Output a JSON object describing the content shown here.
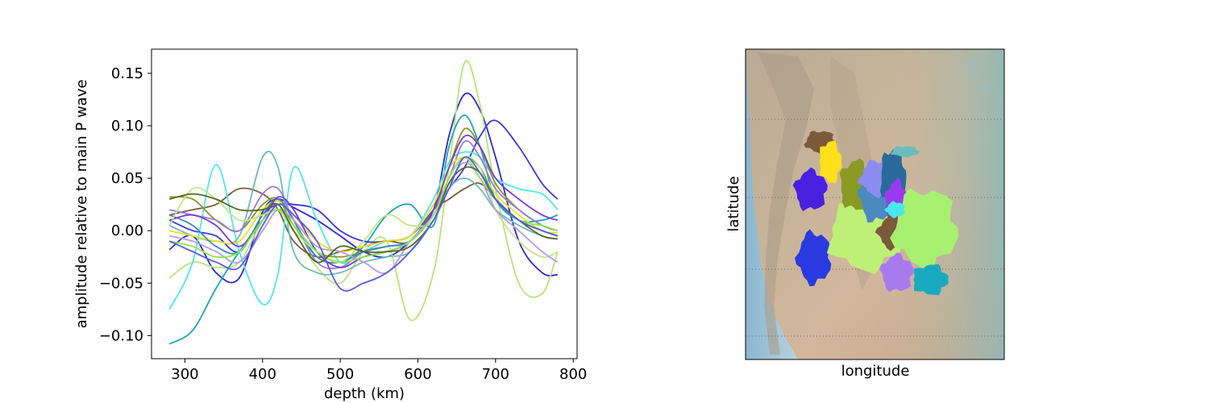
{
  "chart_data": [
    {
      "type": "line",
      "xlabel": "depth (km)",
      "ylabel": "amplitude relative to main P wave",
      "xlim": [
        257,
        805
      ],
      "ylim": [
        -0.122,
        0.173
      ],
      "xticks": [
        300,
        400,
        500,
        600,
        700,
        800
      ],
      "yticks": [
        -0.1,
        -0.05,
        0.0,
        0.05,
        0.1,
        0.15
      ],
      "xtick_labels": [
        "300",
        "400",
        "500",
        "600",
        "700",
        "800"
      ],
      "ytick_labels": [
        "−0.10",
        "−0.05",
        "0.00",
        "0.05",
        "0.10",
        "0.15"
      ],
      "grid": false,
      "x": [
        280,
        310,
        340,
        370,
        400,
        420,
        440,
        470,
        500,
        530,
        560,
        590,
        620,
        640,
        660,
        680,
        700,
        730,
        760,
        780
      ],
      "series": [
        {
          "color": "#2b2bd6",
          "values": [
            -0.018,
            -0.005,
            -0.04,
            -0.045,
            0.018,
            0.03,
            0.022,
            0.01,
            -0.005,
            -0.02,
            -0.025,
            -0.01,
            0.02,
            0.09,
            0.13,
            0.115,
            0.07,
            -0.01,
            -0.04,
            -0.042
          ]
        },
        {
          "color": "#b8e678",
          "values": [
            -0.045,
            -0.03,
            -0.035,
            -0.03,
            0.01,
            0.025,
            0.0,
            -0.035,
            -0.05,
            -0.02,
            -0.01,
            -0.085,
            -0.04,
            0.06,
            0.16,
            0.12,
            0.04,
            -0.05,
            -0.06,
            -0.02
          ]
        },
        {
          "color": "#1aa6b8",
          "values": [
            -0.108,
            -0.095,
            -0.055,
            -0.02,
            0.01,
            0.02,
            0.005,
            -0.025,
            -0.03,
            -0.015,
            0.015,
            0.025,
            0.005,
            0.08,
            0.11,
            0.08,
            0.03,
            0.01,
            0.01,
            0.015
          ]
        },
        {
          "color": "#3a3ad8",
          "values": [
            0.01,
            0.0,
            -0.005,
            -0.02,
            0.015,
            0.025,
            0.025,
            0.02,
            0.0,
            -0.01,
            -0.01,
            -0.005,
            0.02,
            0.04,
            0.06,
            0.09,
            0.105,
            0.08,
            0.045,
            0.03
          ]
        },
        {
          "color": "#7b5a3a",
          "values": [
            0.015,
            0.02,
            0.025,
            0.04,
            0.035,
            0.02,
            -0.01,
            -0.025,
            -0.02,
            -0.015,
            -0.01,
            -0.01,
            0.02,
            0.03,
            0.04,
            0.045,
            0.03,
            0.01,
            0.0,
            -0.005
          ]
        },
        {
          "color": "#4de8f0",
          "values": [
            -0.075,
            -0.03,
            0.063,
            -0.02,
            -0.07,
            -0.04,
            0.06,
            0.01,
            -0.03,
            -0.02,
            -0.01,
            -0.005,
            0.03,
            0.065,
            0.075,
            0.07,
            0.05,
            0.04,
            0.035,
            0.02
          ]
        },
        {
          "color": "#6cbcb8",
          "values": [
            0.005,
            -0.005,
            -0.01,
            -0.005,
            0.07,
            0.06,
            -0.02,
            -0.04,
            -0.04,
            -0.03,
            -0.025,
            -0.02,
            0.01,
            0.04,
            0.05,
            0.04,
            0.02,
            0.005,
            -0.005,
            -0.008
          ]
        },
        {
          "color": "#8a9a22",
          "values": [
            0.032,
            0.03,
            0.01,
            0.0,
            0.025,
            0.03,
            0.005,
            -0.02,
            -0.025,
            -0.02,
            -0.015,
            -0.01,
            0.02,
            0.06,
            0.097,
            0.08,
            0.045,
            0.02,
            0.005,
            0.0
          ]
        },
        {
          "color": "#9a7ae0",
          "values": [
            0.02,
            0.015,
            0.01,
            0.0,
            0.035,
            0.04,
            0.01,
            -0.03,
            -0.035,
            -0.02,
            -0.015,
            -0.01,
            0.02,
            0.05,
            0.085,
            0.07,
            0.04,
            0.02,
            0.005,
            0.0
          ]
        },
        {
          "color": "#f0e01c",
          "values": [
            0.0,
            -0.005,
            -0.01,
            -0.01,
            0.02,
            0.028,
            0.015,
            -0.01,
            -0.02,
            -0.015,
            -0.01,
            -0.005,
            0.025,
            0.06,
            0.07,
            0.06,
            0.035,
            0.015,
            0.0,
            -0.002
          ]
        },
        {
          "color": "#3a8abf",
          "values": [
            0.015,
            0.005,
            -0.015,
            -0.02,
            0.015,
            0.03,
            0.01,
            -0.025,
            -0.03,
            -0.02,
            -0.015,
            -0.01,
            0.015,
            0.05,
            0.07,
            0.06,
            0.03,
            0.01,
            0.0,
            -0.005
          ]
        },
        {
          "color": "#7c3ad8",
          "values": [
            0.01,
            0.015,
            0.005,
            -0.015,
            0.01,
            0.032,
            0.02,
            -0.02,
            -0.035,
            -0.025,
            -0.02,
            -0.01,
            0.02,
            0.06,
            0.09,
            0.08,
            0.05,
            0.03,
            0.015,
            0.01
          ]
        },
        {
          "color": "#c0e88a",
          "values": [
            0.005,
            0.04,
            0.03,
            0.01,
            0.015,
            0.02,
            0.0,
            -0.02,
            -0.03,
            -0.01,
            0.015,
            0.005,
            0.01,
            0.05,
            0.07,
            0.06,
            0.02,
            -0.01,
            -0.025,
            -0.02
          ]
        },
        {
          "color": "#b89ae8",
          "values": [
            -0.005,
            -0.01,
            -0.02,
            -0.03,
            0.0,
            0.02,
            0.01,
            -0.015,
            -0.02,
            -0.03,
            -0.04,
            -0.01,
            0.015,
            0.045,
            0.065,
            0.05,
            0.02,
            0.0,
            -0.02,
            -0.03
          ]
        },
        {
          "color": "#8ce84a",
          "values": [
            -0.01,
            -0.015,
            -0.025,
            -0.02,
            0.01,
            0.02,
            0.005,
            -0.02,
            -0.03,
            -0.025,
            -0.02,
            -0.01,
            0.015,
            0.05,
            0.07,
            0.05,
            0.03,
            0.01,
            0.005,
            0.0
          ]
        },
        {
          "color": "#556b22",
          "values": [
            0.03,
            0.035,
            0.03,
            0.02,
            0.02,
            0.025,
            0.0,
            -0.03,
            -0.015,
            -0.02,
            -0.02,
            -0.015,
            0.01,
            0.045,
            0.06,
            0.055,
            0.03,
            0.01,
            -0.005,
            -0.008
          ]
        },
        {
          "color": "#5a5ae8",
          "values": [
            -0.01,
            -0.02,
            -0.03,
            -0.035,
            0.005,
            0.025,
            0.015,
            -0.01,
            -0.055,
            -0.05,
            -0.04,
            -0.02,
            0.01,
            0.04,
            0.07,
            0.055,
            0.03,
            0.01,
            0.0,
            -0.005
          ]
        }
      ]
    },
    {
      "type": "map",
      "xlabel": "longitude",
      "ylabel": "latitude",
      "grid": "dotted parallels",
      "region_colors": [
        "#7b5a3a",
        "#ffe01a",
        "#4a20e0",
        "#2a3ae0",
        "#bef078",
        "#8a9a22",
        "#4a8abf",
        "#8c8cf0",
        "#2a6a9a",
        "#9a3af0",
        "#7a5a3a",
        "#a8f070",
        "#1aaabf",
        "#a87af0",
        "#48e8f0",
        "#6abcbc"
      ]
    }
  ]
}
